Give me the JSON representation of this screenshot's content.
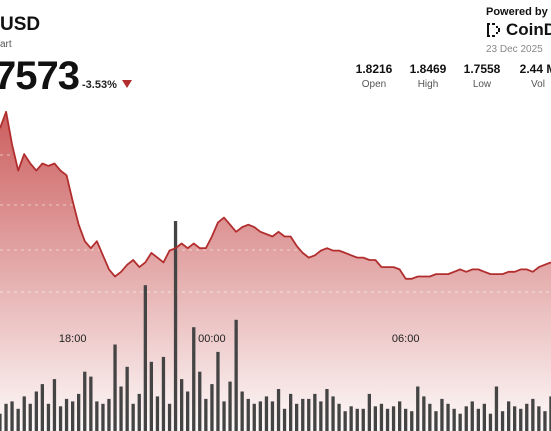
{
  "header": {
    "pair_title": "USD",
    "subtitle": "art",
    "price": "7573",
    "change": "-3.53%",
    "powered_by": "Powered by",
    "brand": "CoinDe",
    "date": "23 Dec 2025"
  },
  "stats": [
    {
      "value": "1.8216",
      "label": "Open"
    },
    {
      "value": "1.8469",
      "label": "High"
    },
    {
      "value": "1.7558",
      "label": "Low"
    },
    {
      "value": "2.44 M",
      "label": "Vol"
    }
  ],
  "colors": {
    "line": "#b22e2e",
    "area_top": "#c95555",
    "volume": "#444444",
    "down_arrow": "#b22e2e"
  },
  "chart_data": {
    "type": "area",
    "title": "",
    "xlabel": "",
    "ylabel": "",
    "x_ticks": [
      "18:00",
      "00:00",
      "06:00"
    ],
    "grid": true,
    "legend": "none",
    "series": [
      {
        "values": [
          1.838,
          1.845,
          1.831,
          1.82,
          1.827,
          1.823,
          1.82,
          1.823,
          1.822,
          1.823,
          1.82,
          1.818,
          1.807,
          1.797,
          1.79,
          1.787,
          1.79,
          1.784,
          1.778,
          1.775,
          1.777,
          1.78,
          1.782,
          1.779,
          1.781,
          1.785,
          1.783,
          1.781,
          1.786,
          1.787,
          1.789,
          1.787,
          1.789,
          1.787,
          1.787,
          1.792,
          1.798,
          1.8,
          1.797,
          1.794,
          1.796,
          1.797,
          1.796,
          1.794,
          1.793,
          1.792,
          1.794,
          1.792,
          1.792,
          1.788,
          1.785,
          1.783,
          1.784,
          1.786,
          1.787,
          1.786,
          1.786,
          1.785,
          1.784,
          1.783,
          1.783,
          1.782,
          1.782,
          1.779,
          1.779,
          1.779,
          1.778,
          1.774,
          1.774,
          1.775,
          1.775,
          1.775,
          1.776,
          1.776,
          1.776,
          1.777,
          1.778,
          1.777,
          1.778,
          1.778,
          1.777,
          1.776,
          1.776,
          1.776,
          1.777,
          1.777,
          1.778,
          1.778,
          1.777,
          1.779,
          1.78,
          1.781
        ]
      }
    ],
    "volume": [
      0.7,
      1.1,
      1.2,
      0.9,
      1.4,
      1.1,
      1.6,
      1.9,
      1.1,
      2.1,
      1.0,
      1.3,
      1.2,
      1.5,
      2.4,
      2.2,
      1.2,
      1.1,
      1.3,
      3.5,
      1.8,
      2.6,
      1.1,
      1.5,
      5.9,
      2.8,
      1.4,
      3.0,
      1.1,
      8.5,
      2.1,
      1.6,
      4.2,
      2.4,
      1.3,
      1.9,
      3.2,
      1.2,
      2.0,
      4.5,
      1.6,
      1.3,
      1.1,
      1.2,
      1.4,
      1.2,
      1.7,
      0.9,
      1.5,
      1.1,
      1.3,
      1.3,
      1.5,
      1.2,
      1.7,
      1.4,
      1.1,
      0.8,
      1.0,
      0.9,
      0.9,
      1.5,
      1.0,
      1.1,
      0.9,
      1.0,
      1.2,
      0.9,
      0.8,
      1.8,
      1.4,
      1.1,
      0.8,
      1.3,
      1.1,
      0.9,
      0.7,
      1.0,
      1.2,
      0.9,
      1.1,
      0.7,
      1.8,
      0.8,
      1.2,
      1.0,
      0.9,
      1.1,
      1.3,
      1.0,
      0.8,
      1.4
    ],
    "x_tick_index": [
      12,
      35,
      67
    ]
  }
}
